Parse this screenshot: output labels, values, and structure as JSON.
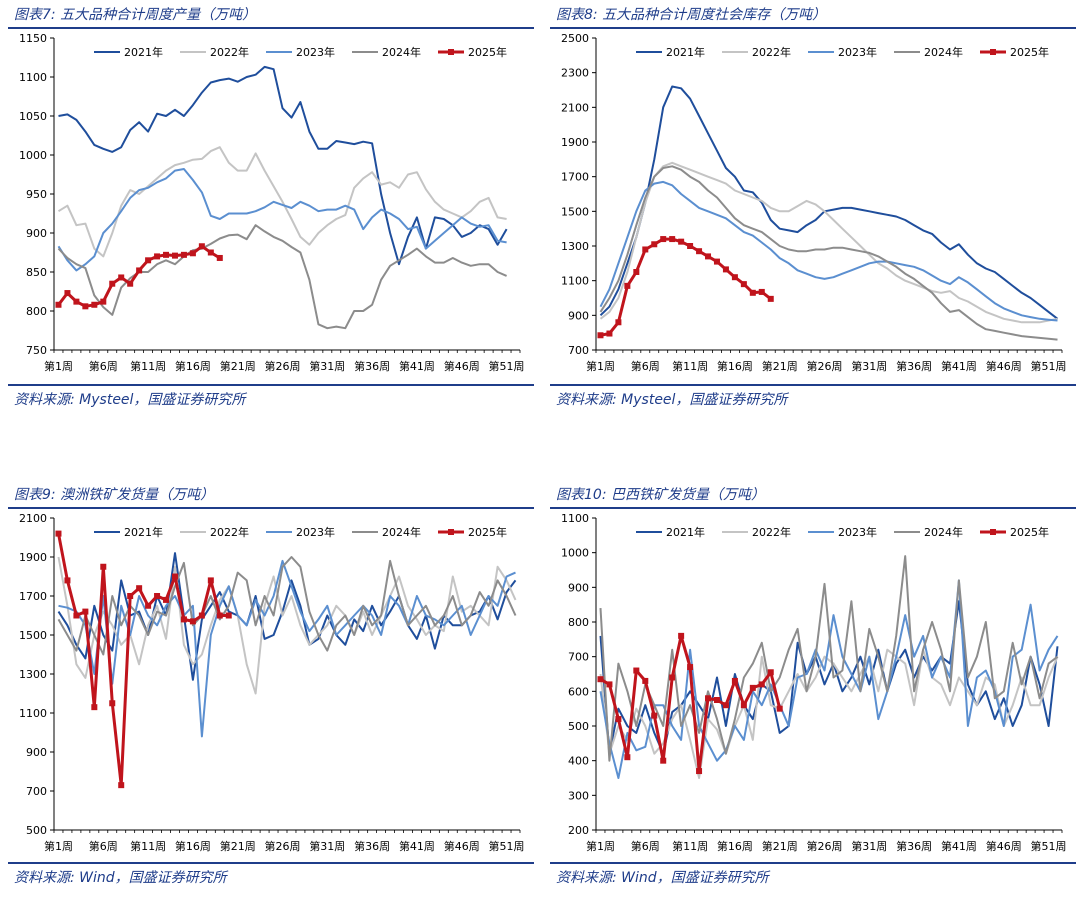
{
  "colors": {
    "2021": "#1f4e9c",
    "2022": "#c4c4c4",
    "2023": "#5b8fd0",
    "2024": "#8c8c8c",
    "2025": "#c0141c",
    "accent": "#1f3d8a"
  },
  "chart_data": [
    {
      "type": "line",
      "title": "图表7:  五大品种合计周度产量（万吨）",
      "source": "资料来源:  Mysteel，国盛证券研究所",
      "ylim": [
        750,
        1150
      ],
      "yticks": [
        750,
        800,
        850,
        900,
        950,
        1000,
        1050,
        1100,
        1150
      ],
      "xticks": [
        "第1周",
        "第6周",
        "第11周",
        "第16周",
        "第21周",
        "第26周",
        "第31周",
        "第36周",
        "第41周",
        "第46周",
        "第51周"
      ],
      "series": [
        {
          "name": "2021年",
          "values": [
            1050,
            1052,
            1045,
            1030,
            1013,
            1008,
            1004,
            1010,
            1032,
            1042,
            1030,
            1053,
            1050,
            1058,
            1050,
            1064,
            1080,
            1093,
            1096,
            1098,
            1094,
            1100,
            1103,
            1113,
            1110,
            1060,
            1048,
            1068,
            1030,
            1008,
            1008,
            1018,
            1016,
            1014,
            1017,
            1015,
            950,
            900,
            860,
            895,
            920,
            880,
            920,
            918,
            910,
            895,
            900,
            910,
            905,
            885,
            905
          ]
        },
        {
          "name": "2022年",
          "values": [
            928,
            935,
            910,
            912,
            880,
            870,
            900,
            935,
            955,
            950,
            960,
            970,
            980,
            987,
            990,
            994,
            995,
            1005,
            1010,
            990,
            980,
            980,
            1002,
            980,
            960,
            940,
            918,
            895,
            885,
            900,
            910,
            918,
            923,
            958,
            970,
            978,
            962,
            965,
            958,
            975,
            978,
            956,
            940,
            930,
            925,
            920,
            928,
            940,
            945,
            920,
            918
          ]
        },
        {
          "name": "2023年",
          "values": [
            883,
            865,
            852,
            860,
            870,
            900,
            912,
            928,
            945,
            955,
            958,
            965,
            970,
            980,
            982,
            968,
            952,
            922,
            918,
            925,
            925,
            925,
            928,
            933,
            940,
            936,
            932,
            940,
            935,
            928,
            930,
            930,
            935,
            930,
            905,
            920,
            930,
            925,
            918,
            905,
            908,
            880,
            890,
            900,
            910,
            920,
            912,
            908,
            910,
            890,
            888
          ]
        },
        {
          "name": "2024年",
          "values": [
            880,
            868,
            860,
            855,
            820,
            805,
            795,
            830,
            842,
            850,
            850,
            860,
            865,
            860,
            870,
            878,
            880,
            886,
            893,
            897,
            898,
            892,
            910,
            902,
            895,
            890,
            882,
            875,
            840,
            783,
            778,
            780,
            778,
            800,
            800,
            808,
            840,
            858,
            865,
            872,
            880,
            870,
            862,
            862,
            868,
            862,
            858,
            860,
            860,
            850,
            845
          ]
        },
        {
          "name": "2025年",
          "values": [
            808,
            823,
            812,
            806,
            808,
            812,
            835,
            843,
            835,
            852,
            865,
            870,
            872,
            871,
            872,
            874,
            883,
            875,
            868
          ]
        }
      ]
    },
    {
      "type": "line",
      "title": "图表8:  五大品种合计周度社会库存（万吨）",
      "source": "资料来源:  Mysteel，国盛证券研究所",
      "ylim": [
        700,
        2500
      ],
      "yticks": [
        700,
        900,
        1100,
        1300,
        1500,
        1700,
        1900,
        2100,
        2300,
        2500
      ],
      "xticks": [
        "第1周",
        "第6周",
        "第11周",
        "第16周",
        "第21周",
        "第26周",
        "第31周",
        "第36周",
        "第41周",
        "第46周",
        "第51周"
      ],
      "series": [
        {
          "name": "2021年",
          "values": [
            900,
            950,
            1050,
            1200,
            1350,
            1550,
            1800,
            2100,
            2220,
            2210,
            2150,
            2050,
            1950,
            1850,
            1750,
            1700,
            1620,
            1610,
            1550,
            1450,
            1400,
            1390,
            1380,
            1420,
            1450,
            1500,
            1510,
            1520,
            1520,
            1510,
            1500,
            1490,
            1480,
            1470,
            1450,
            1420,
            1390,
            1370,
            1320,
            1280,
            1310,
            1250,
            1200,
            1170,
            1150,
            1110,
            1070,
            1030,
            1000,
            960,
            920,
            880
          ]
        },
        {
          "name": "2022年",
          "values": [
            880,
            920,
            1000,
            1150,
            1350,
            1550,
            1700,
            1760,
            1780,
            1760,
            1740,
            1720,
            1700,
            1680,
            1660,
            1620,
            1600,
            1580,
            1560,
            1520,
            1500,
            1500,
            1530,
            1560,
            1540,
            1500,
            1450,
            1400,
            1350,
            1300,
            1250,
            1200,
            1170,
            1130,
            1100,
            1080,
            1060,
            1040,
            1030,
            1040,
            1000,
            980,
            950,
            920,
            900,
            880,
            870,
            860,
            860,
            860,
            870,
            880
          ]
        },
        {
          "name": "2023年",
          "values": [
            950,
            1050,
            1200,
            1350,
            1500,
            1620,
            1660,
            1670,
            1650,
            1600,
            1560,
            1520,
            1500,
            1480,
            1460,
            1420,
            1380,
            1360,
            1320,
            1280,
            1230,
            1200,
            1160,
            1140,
            1120,
            1110,
            1120,
            1140,
            1160,
            1180,
            1200,
            1210,
            1210,
            1200,
            1190,
            1180,
            1160,
            1130,
            1100,
            1080,
            1120,
            1090,
            1050,
            1010,
            970,
            940,
            920,
            900,
            890,
            880,
            875,
            870
          ]
        },
        {
          "name": "2024年",
          "values": [
            920,
            1000,
            1100,
            1250,
            1420,
            1580,
            1700,
            1750,
            1760,
            1740,
            1700,
            1670,
            1620,
            1580,
            1520,
            1460,
            1420,
            1400,
            1380,
            1340,
            1300,
            1280,
            1270,
            1270,
            1280,
            1280,
            1290,
            1290,
            1280,
            1270,
            1260,
            1240,
            1210,
            1180,
            1140,
            1110,
            1070,
            1030,
            970,
            920,
            930,
            890,
            850,
            820,
            810,
            800,
            790,
            780,
            775,
            770,
            765,
            760
          ]
        },
        {
          "name": "2025年",
          "values": [
            785,
            795,
            860,
            1070,
            1150,
            1280,
            1310,
            1340,
            1340,
            1325,
            1300,
            1270,
            1240,
            1210,
            1165,
            1120,
            1080,
            1030,
            1035,
            995
          ]
        }
      ]
    },
    {
      "type": "line",
      "title": "图表9:  澳洲铁矿发货量（万吨）",
      "source": "资料来源:  Wind，国盛证券研究所",
      "ylim": [
        500,
        2100
      ],
      "yticks": [
        500,
        700,
        900,
        1100,
        1300,
        1500,
        1700,
        1900,
        2100
      ],
      "xticks": [
        "第1周",
        "第6周",
        "第11周",
        "第16周",
        "第21周",
        "第26周",
        "第31周",
        "第36周",
        "第41周",
        "第46周",
        "第51周"
      ],
      "series": [
        {
          "name": "2021年",
          "values": [
            1620,
            1550,
            1450,
            1380,
            1650,
            1500,
            1420,
            1780,
            1600,
            1620,
            1500,
            1700,
            1600,
            1920,
            1600,
            1270,
            1580,
            1650,
            1720,
            1620,
            1600,
            1550,
            1700,
            1480,
            1500,
            1620,
            1780,
            1650,
            1450,
            1480,
            1600,
            1500,
            1450,
            1580,
            1520,
            1650,
            1550,
            1620,
            1700,
            1550,
            1480,
            1600,
            1430,
            1600,
            1550,
            1550,
            1600,
            1620,
            1700,
            1580,
            1720,
            1780
          ]
        },
        {
          "name": "2022年",
          "values": [
            1900,
            1650,
            1350,
            1280,
            1500,
            1620,
            1550,
            1450,
            1500,
            1350,
            1550,
            1650,
            1480,
            1850,
            1450,
            1350,
            1400,
            1550,
            1680,
            1750,
            1600,
            1350,
            1200,
            1650,
            1800,
            1600,
            1700,
            1550,
            1450,
            1500,
            1550,
            1650,
            1600,
            1500,
            1620,
            1500,
            1600,
            1700,
            1800,
            1650,
            1580,
            1500,
            1550,
            1520,
            1800,
            1620,
            1650,
            1600,
            1550,
            1850,
            1780,
            1680
          ]
        },
        {
          "name": "2023年",
          "values": [
            1650,
            1640,
            1620,
            1550,
            1300,
            1700,
            1250,
            1650,
            1500,
            1700,
            1600,
            1550,
            1650,
            1700,
            1600,
            1650,
            980,
            1500,
            1650,
            1750,
            1600,
            1550,
            1680,
            1600,
            1700,
            1880,
            1750,
            1620,
            1520,
            1580,
            1650,
            1500,
            1550,
            1600,
            1650,
            1600,
            1500,
            1700,
            1650,
            1550,
            1700,
            1600,
            1580,
            1550,
            1600,
            1650,
            1500,
            1600,
            1700,
            1650,
            1800,
            1820
          ]
        },
        {
          "name": "2024年",
          "values": [
            1580,
            1500,
            1420,
            1600,
            1500,
            1400,
            1700,
            1550,
            1650,
            1600,
            1500,
            1620,
            1600,
            1750,
            1870,
            1550,
            1600,
            1700,
            1580,
            1650,
            1820,
            1780,
            1550,
            1700,
            1600,
            1850,
            1900,
            1850,
            1620,
            1500,
            1420,
            1550,
            1600,
            1500,
            1650,
            1550,
            1600,
            1880,
            1700,
            1550,
            1600,
            1650,
            1550,
            1600,
            1700,
            1550,
            1600,
            1720,
            1650,
            1780,
            1700,
            1600
          ]
        },
        {
          "name": "2025年",
          "values": [
            2020,
            1780,
            1600,
            1620,
            1130,
            1850,
            1150,
            730,
            1700,
            1740,
            1650,
            1700,
            1680,
            1800,
            1580,
            1570,
            1600,
            1780,
            1600,
            1600
          ]
        }
      ]
    },
    {
      "type": "line",
      "title": "图表10:  巴西铁矿发货量（万吨）",
      "source": "资料来源:  Wind，国盛证券研究所",
      "ylim": [
        200,
        1100
      ],
      "yticks": [
        200,
        300,
        400,
        500,
        600,
        700,
        800,
        900,
        1000,
        1100
      ],
      "xticks": [
        "第1周",
        "第6周",
        "第11周",
        "第16周",
        "第21周",
        "第26周",
        "第31周",
        "第36周",
        "第41周",
        "第46周",
        "第51周"
      ],
      "series": [
        {
          "name": "2021年",
          "values": [
            760,
            420,
            550,
            500,
            480,
            560,
            480,
            420,
            540,
            560,
            600,
            560,
            520,
            640,
            500,
            650,
            560,
            520,
            620,
            600,
            480,
            500,
            740,
            650,
            700,
            620,
            680,
            600,
            640,
            700,
            620,
            720,
            600,
            680,
            720,
            640,
            700,
            660,
            700,
            680,
            860,
            620,
            560,
            600,
            520,
            580,
            500,
            560,
            700,
            620,
            500,
            730
          ]
        },
        {
          "name": "2022年",
          "values": [
            650,
            420,
            500,
            460,
            550,
            500,
            420,
            450,
            520,
            560,
            460,
            350,
            520,
            490,
            420,
            500,
            560,
            460,
            700,
            560,
            550,
            600,
            650,
            600,
            640,
            700,
            680,
            640,
            600,
            650,
            700,
            600,
            720,
            700,
            680,
            560,
            720,
            640,
            620,
            560,
            640,
            600,
            560,
            640,
            620,
            500,
            560,
            640,
            560,
            560,
            640,
            700
          ]
        },
        {
          "name": "2023年",
          "values": [
            600,
            450,
            350,
            480,
            430,
            440,
            560,
            560,
            500,
            460,
            720,
            500,
            450,
            400,
            430,
            500,
            460,
            600,
            560,
            620,
            560,
            500,
            640,
            650,
            720,
            660,
            820,
            700,
            650,
            600,
            700,
            520,
            600,
            700,
            820,
            700,
            760,
            640,
            700,
            640,
            920,
            500,
            640,
            660,
            600,
            500,
            700,
            720,
            850,
            660,
            720,
            760
          ]
        },
        {
          "name": "2024年",
          "values": [
            840,
            400,
            680,
            600,
            500,
            620,
            560,
            500,
            720,
            500,
            560,
            480,
            600,
            520,
            420,
            520,
            640,
            680,
            740,
            600,
            640,
            720,
            780,
            600,
            700,
            910,
            640,
            660,
            860,
            600,
            780,
            700,
            600,
            760,
            990,
            600,
            720,
            800,
            720,
            600,
            920,
            640,
            700,
            800,
            580,
            600,
            740,
            620,
            700,
            580,
            680,
            700
          ]
        },
        {
          "name": "2025年",
          "values": [
            635,
            620,
            520,
            410,
            660,
            630,
            530,
            400,
            640,
            760,
            670,
            370,
            580,
            575,
            560,
            630,
            560,
            610,
            620,
            655,
            550
          ]
        }
      ]
    }
  ],
  "legend_labels": [
    "2021年",
    "2022年",
    "2023年",
    "2024年",
    "2025年"
  ]
}
